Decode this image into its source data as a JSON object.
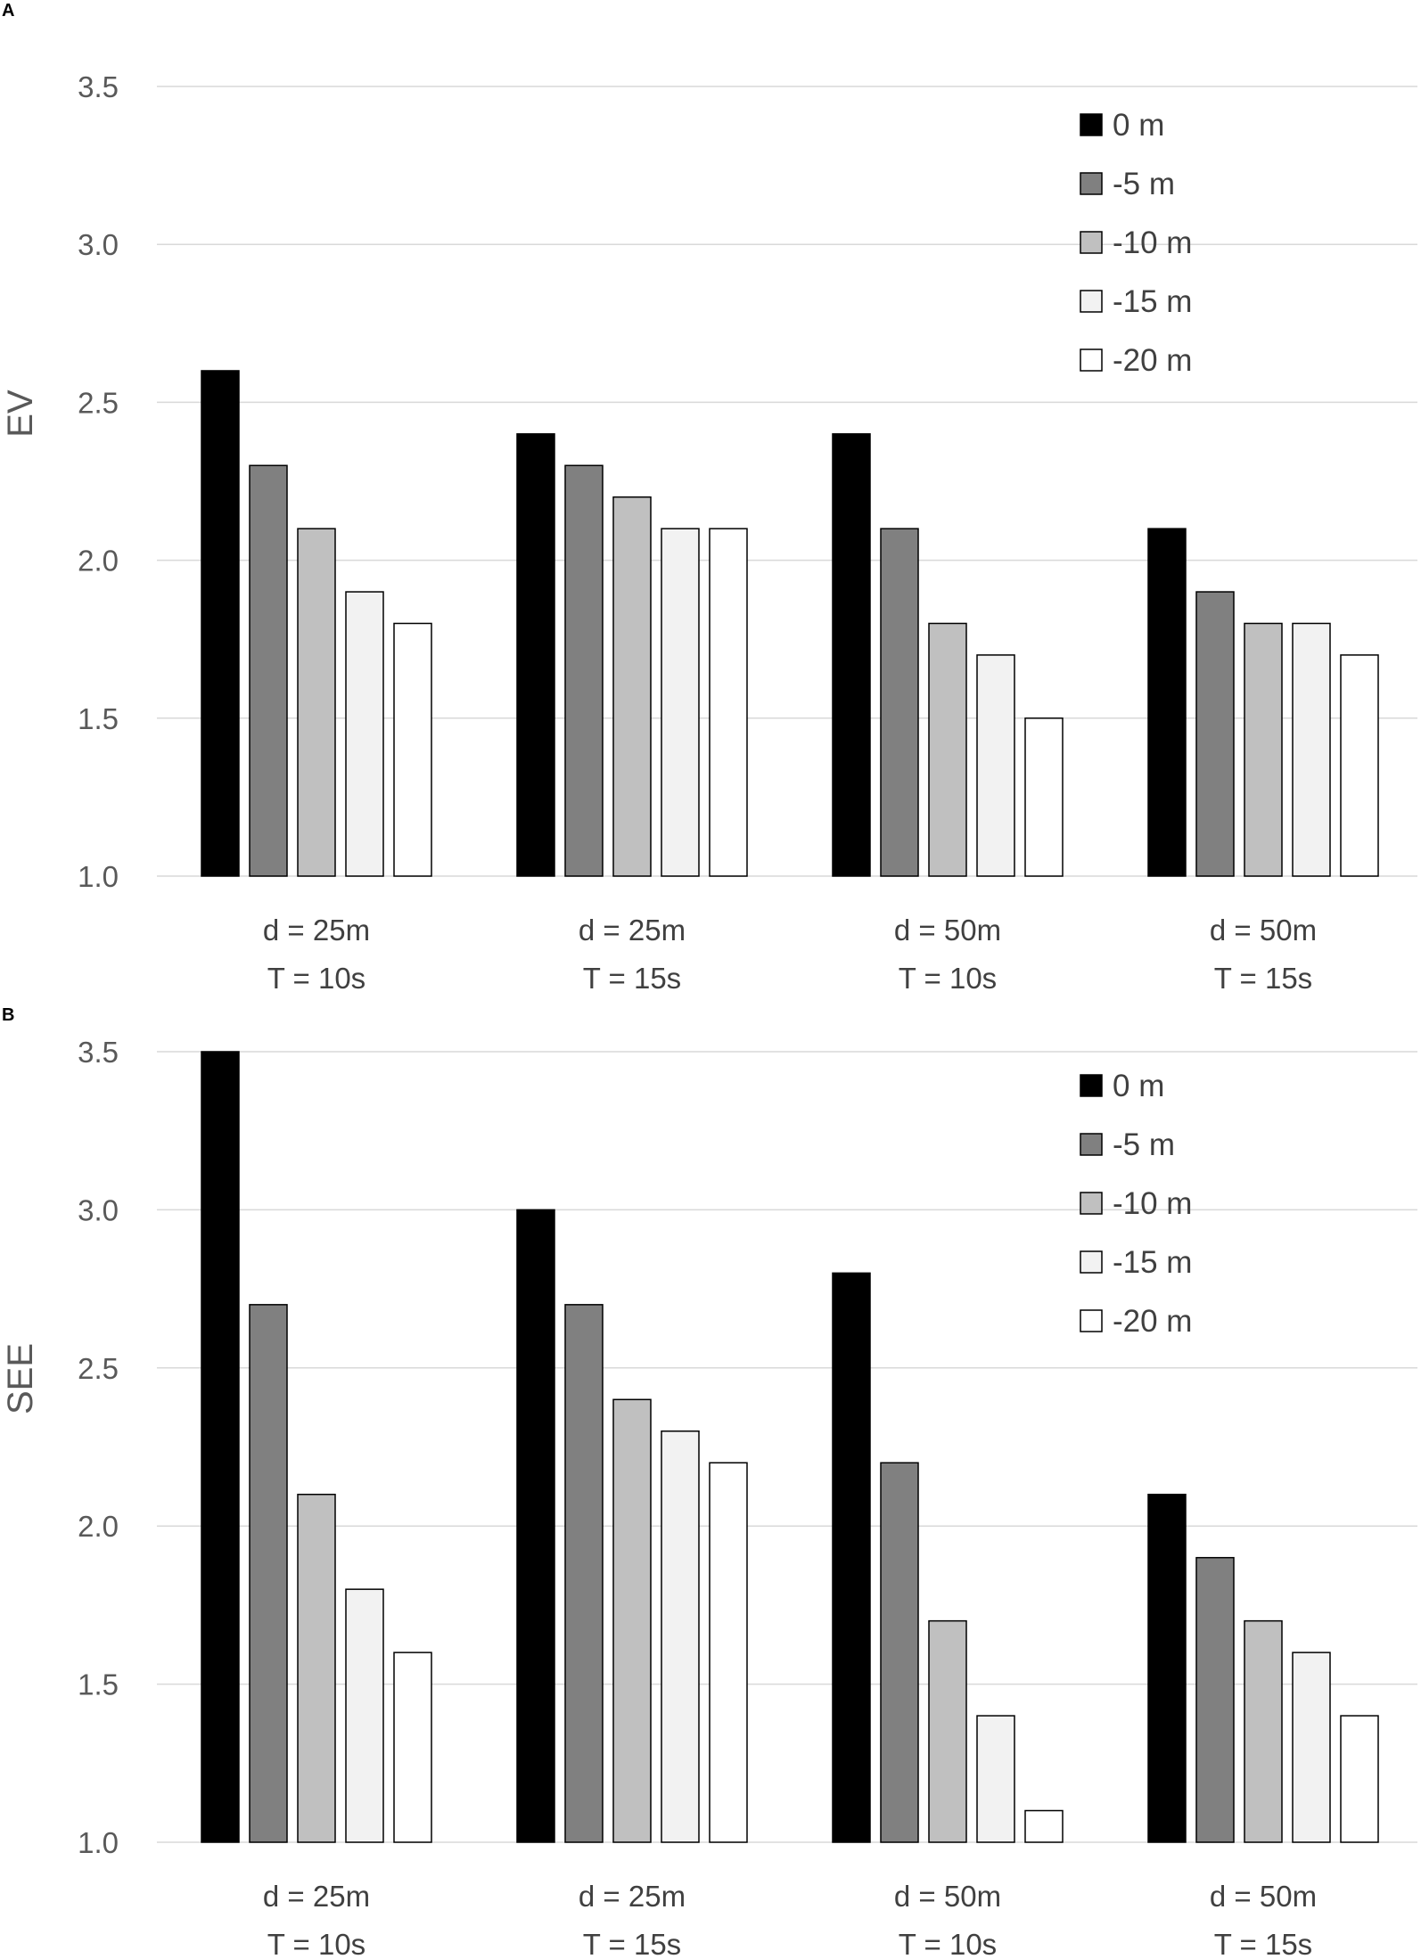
{
  "series_styles": [
    {
      "name": "0 m",
      "fill": "#000000"
    },
    {
      "name": "-5 m",
      "fill": "#808080"
    },
    {
      "name": "-10 m",
      "fill": "#c0c0c0"
    },
    {
      "name": "-15 m",
      "fill": "#f2f2f2"
    },
    {
      "name": "-20 m",
      "fill": "#ffffff"
    }
  ],
  "chart_data": [
    {
      "panel": "A",
      "type": "bar",
      "title": "",
      "xlabel": "",
      "ylabel": "EV",
      "ylim": [
        1.0,
        3.5
      ],
      "yticks": [
        "1.0",
        "1.5",
        "2.0",
        "2.5",
        "3.0",
        "3.5"
      ],
      "legend_position": "top-right",
      "categories": [
        {
          "line1": "d = 25m",
          "line2": "T = 10s"
        },
        {
          "line1": "d = 25m",
          "line2": "T = 15s"
        },
        {
          "line1": "d = 50m",
          "line2": "T = 10s"
        },
        {
          "line1": "d = 50m",
          "line2": "T = 15s"
        }
      ],
      "series": [
        {
          "name": "0 m",
          "values": [
            2.6,
            2.4,
            2.4,
            2.1
          ]
        },
        {
          "name": "-5 m",
          "values": [
            2.3,
            2.3,
            2.1,
            1.9
          ]
        },
        {
          "name": "-10 m",
          "values": [
            2.1,
            2.2,
            1.8,
            1.8
          ]
        },
        {
          "name": "-15 m",
          "values": [
            1.9,
            2.1,
            1.7,
            1.8
          ]
        },
        {
          "name": "-20 m",
          "values": [
            1.8,
            2.1,
            1.5,
            1.7
          ]
        }
      ]
    },
    {
      "panel": "B",
      "type": "bar",
      "title": "",
      "xlabel": "",
      "ylabel": "SEE",
      "ylim": [
        1.0,
        3.5
      ],
      "yticks": [
        "1.0",
        "1.5",
        "2.0",
        "2.5",
        "3.0",
        "3.5"
      ],
      "legend_position": "top-right",
      "categories": [
        {
          "line1": "d = 25m",
          "line2": "T = 10s"
        },
        {
          "line1": "d = 25m",
          "line2": "T = 15s"
        },
        {
          "line1": "d = 50m",
          "line2": "T = 10s"
        },
        {
          "line1": "d = 50m",
          "line2": "T = 15s"
        }
      ],
      "series": [
        {
          "name": "0 m",
          "values": [
            3.5,
            3.0,
            2.8,
            2.1
          ]
        },
        {
          "name": "-5 m",
          "values": [
            2.7,
            2.7,
            2.2,
            1.9
          ]
        },
        {
          "name": "-10 m",
          "values": [
            2.1,
            2.4,
            1.7,
            1.7
          ]
        },
        {
          "name": "-15 m",
          "values": [
            1.8,
            2.3,
            1.4,
            1.6
          ]
        },
        {
          "name": "-20 m",
          "values": [
            1.6,
            2.2,
            1.1,
            1.4
          ]
        }
      ]
    }
  ]
}
